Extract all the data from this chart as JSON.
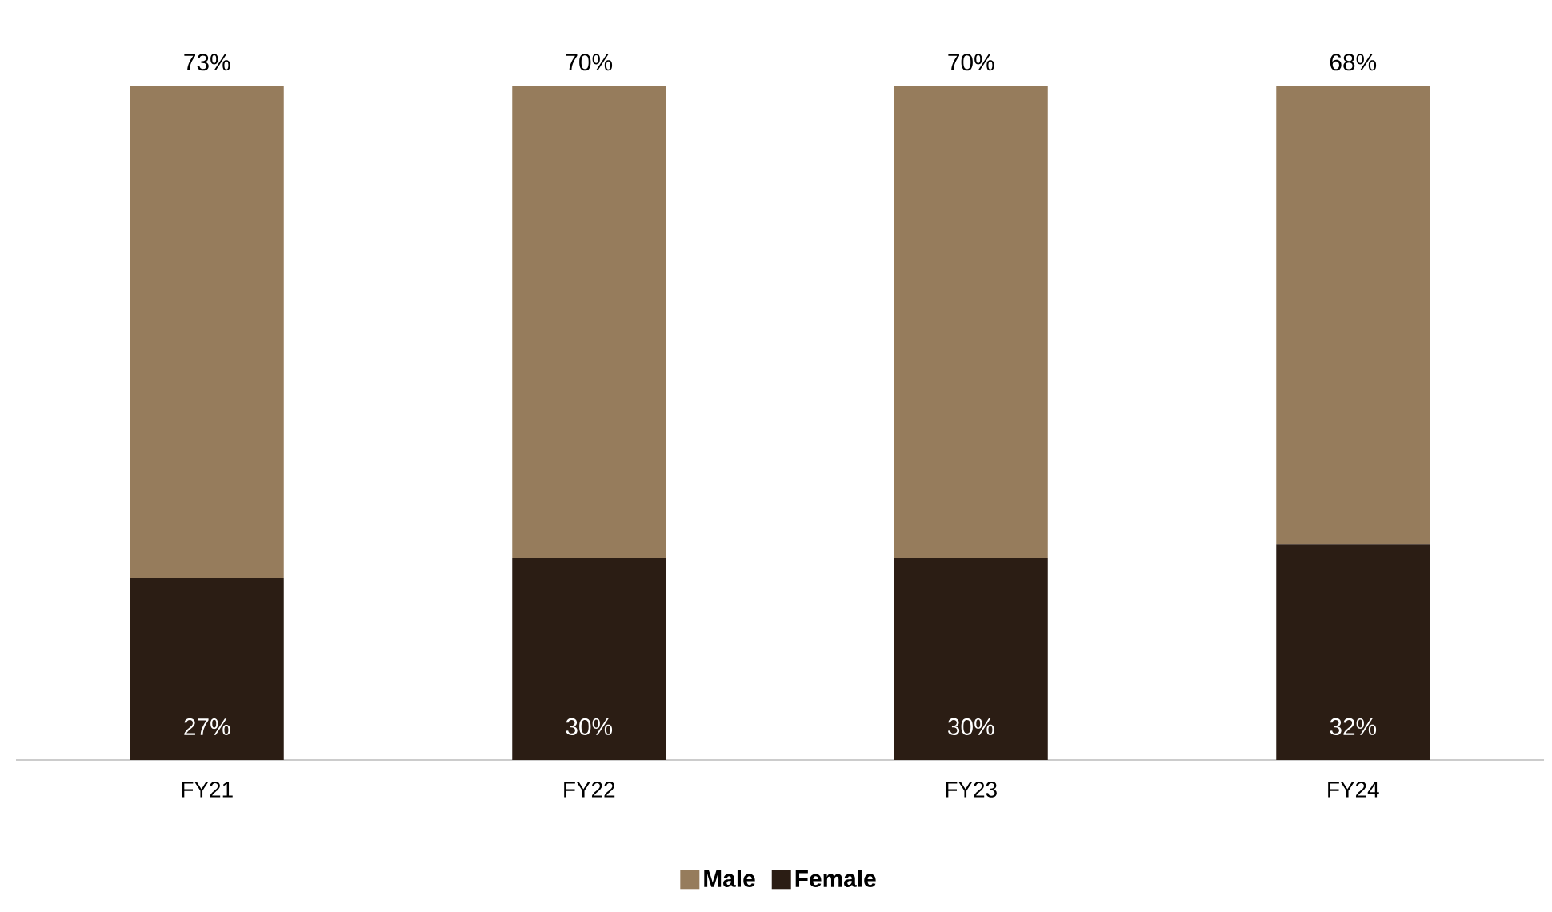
{
  "chart_data": {
    "type": "bar",
    "stacked": true,
    "categories": [
      "FY21",
      "FY22",
      "FY23",
      "FY24"
    ],
    "series": [
      {
        "name": "Female",
        "color": "#2b1d14",
        "values": [
          27,
          30,
          30,
          32
        ],
        "value_labels": [
          "27%",
          "30%",
          "30%",
          "32%"
        ]
      },
      {
        "name": "Male",
        "color": "#967c5c",
        "values": [
          73,
          70,
          70,
          68
        ],
        "value_labels": [
          "73%",
          "70%",
          "70%",
          "68%"
        ]
      }
    ],
    "legend": "bottom"
  }
}
